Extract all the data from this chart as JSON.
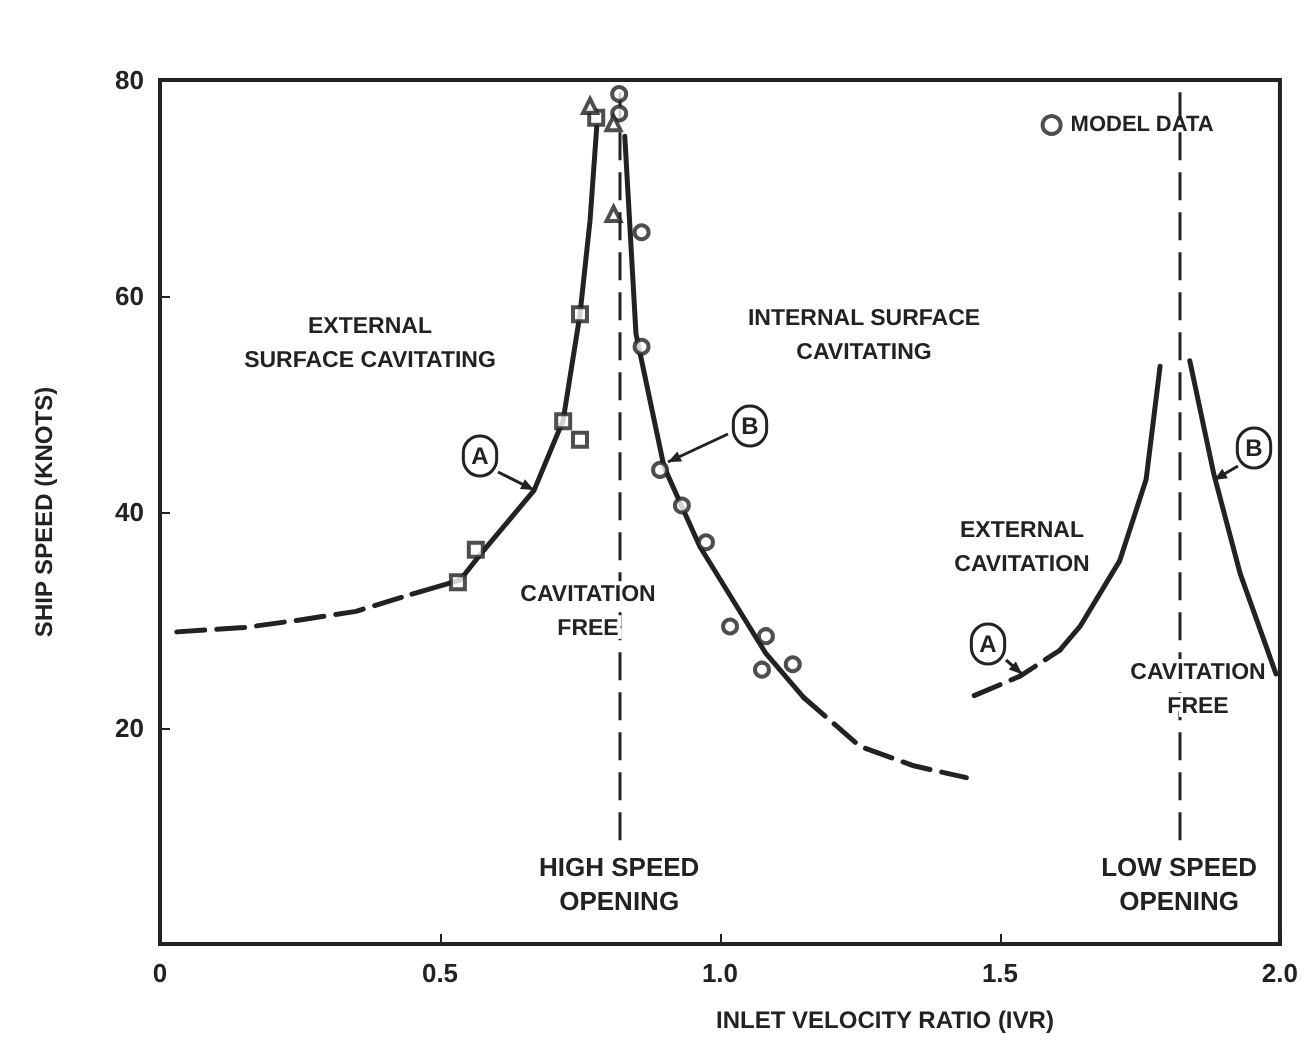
{
  "chart_data": {
    "type": "line",
    "xlabel": "INLET VELOCITY RATIO (IVR)",
    "ylabel": "SHIP SPEED (KNOTS)",
    "xlim": [
      0,
      2
    ],
    "ylim": [
      0,
      80
    ],
    "xticks": [
      0,
      0.5,
      {
        "value": 1,
        "label": "1.0"
      },
      1.5,
      {
        "value": 2,
        "label": "2.0"
      }
    ],
    "yticks": [
      20,
      40,
      60,
      80
    ],
    "grid": false,
    "legend": "top right",
    "series": [
      {
        "color": "#222222",
        "line_style": "dashed",
        "marker": "none",
        "x": [
          0.03,
          0.15,
          0.25,
          0.35,
          0.45
        ],
        "values": [
          28.9,
          29.3,
          30,
          30.8,
          32.4
        ]
      },
      {
        "color": "#222222",
        "line_style": "solid",
        "marker": "none",
        "x": [
          0.45,
          0.536,
          0.571,
          0.668,
          0.72,
          0.75,
          0.768,
          0.78
        ],
        "values": [
          32.4,
          33.7,
          36,
          42,
          48.5,
          58.3,
          67,
          75.7
        ]
      },
      {
        "color": "#222222",
        "line_style": "solid",
        "marker": "none",
        "x": [
          0.83,
          0.85,
          0.9,
          0.964,
          1.082,
          1.15
        ],
        "values": [
          74.8,
          56.5,
          44.2,
          36.8,
          26.9,
          22.8
        ]
      },
      {
        "color": "#222222",
        "line_style": "dashed",
        "marker": "none",
        "x": [
          1.15,
          1.25,
          1.346,
          1.44
        ],
        "values": [
          22.8,
          18.3,
          16.5,
          15.4
        ]
      },
      {
        "color": "#222222",
        "line_style": "dashed",
        "marker": "none",
        "x": [
          1.454,
          1.536,
          1.607
        ],
        "values": [
          23,
          24.8,
          27.2
        ]
      },
      {
        "color": "#222222",
        "line_style": "solid",
        "marker": "none",
        "x": [
          1.607,
          1.643,
          1.714,
          1.761,
          1.786
        ],
        "values": [
          27.2,
          29.4,
          35.5,
          43,
          53.5
        ]
      },
      {
        "color": "#222222",
        "line_style": "solid",
        "marker": "none",
        "x": [
          1.839,
          1.882,
          1.929,
          1.993
        ],
        "values": [
          54,
          43.5,
          34.3,
          25
        ]
      },
      {
        "name": "MODEL DATA",
        "type": "scatter",
        "color": "#222222",
        "marker": "circle",
        "x": [
          0.82,
          0.82,
          0.86,
          0.86,
          0.893,
          0.932,
          0.975,
          1.018,
          1.082,
          1.075,
          1.13
        ],
        "values": [
          78.7,
          76.9,
          65.9,
          55.3,
          43.9,
          40.6,
          37.2,
          29.4,
          28.5,
          25.4,
          25.9
        ]
      },
      {
        "type": "scatter",
        "color": "#222222",
        "marker": "square",
        "x": [
          0.75,
          0.72,
          0.75,
          0.564,
          0.532,
          0.779
        ],
        "values": [
          58.3,
          48.4,
          46.7,
          36.5,
          33.5,
          76.5
        ]
      },
      {
        "type": "scatter",
        "color": "#222222",
        "marker": "triangle",
        "x": [
          0.768,
          0.81,
          0.81
        ],
        "values": [
          77.6,
          76,
          67.6
        ]
      }
    ],
    "ref_lines": [
      {
        "axis": "x",
        "value": 0.82,
        "label": "HIGH SPEED\nOPENING",
        "line_style": "dashed"
      },
      {
        "axis": "x",
        "value": 1.82,
        "label": "LOW SPEED\nOPENING",
        "line_style": "dashed"
      }
    ],
    "annotations": [
      "EXTERNAL\nSURFACE CAVITATING",
      "INTERNAL SURFACE\nCAVITATING",
      "CAVITATION\nFREE",
      "EXTERNAL\nCAVITATION",
      "CAVITATION\nFREE",
      "A",
      "B",
      "A",
      "B"
    ]
  }
}
